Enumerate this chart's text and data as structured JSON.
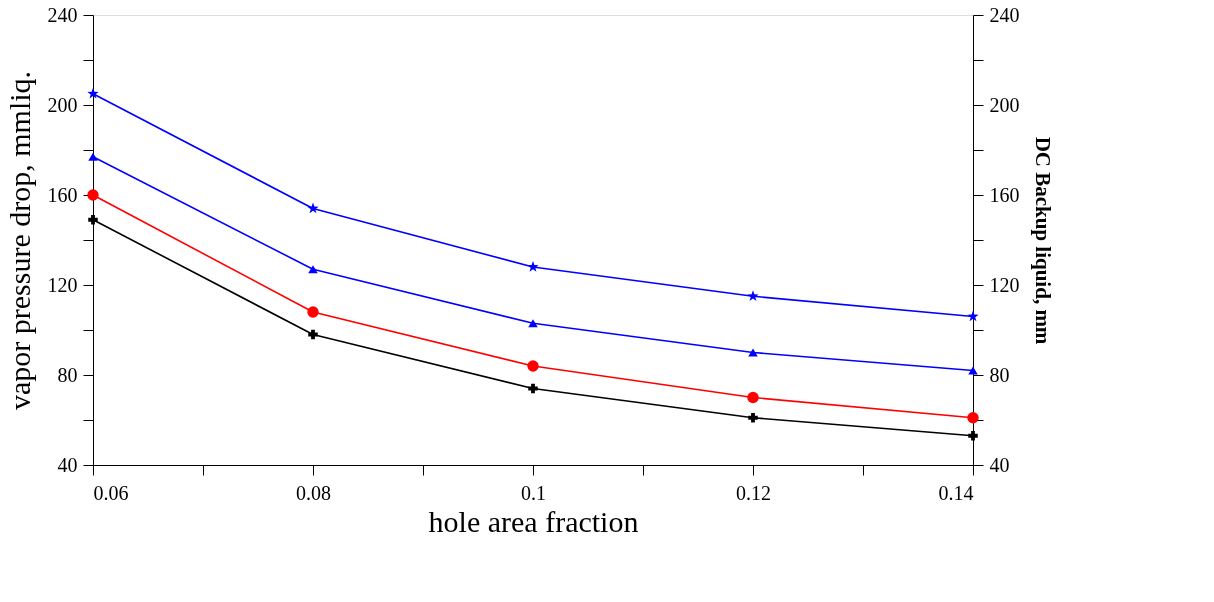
{
  "chart_data": {
    "type": "line",
    "xlabel": "hole area fraction",
    "ylabel": "vapor pressure drop, mmliq.",
    "y2label": "DC Backup liquid, mm",
    "x": [
      0.06,
      0.08,
      0.1,
      0.12,
      0.14
    ],
    "series": [
      {
        "color": "#0000ff",
        "marker": "star",
        "axis": "y2",
        "values": [
          205,
          154,
          128,
          115,
          106
        ]
      },
      {
        "color": "#0000ff",
        "marker": "triangle",
        "axis": "y2",
        "values": [
          177,
          127,
          103,
          90,
          82
        ]
      },
      {
        "color": "#ff0000",
        "marker": "circle",
        "values": [
          160,
          108,
          84,
          70,
          61
        ]
      },
      {
        "color": "#000000",
        "marker": "cross",
        "values": [
          149,
          98,
          74,
          61,
          53
        ]
      }
    ],
    "xlim": [
      0.06,
      0.14
    ],
    "xticks": [
      0.06,
      {
        "value": 0.07,
        "label": null
      },
      0.08,
      {
        "value": 0.09,
        "label": null
      },
      0.1,
      {
        "value": 0.11,
        "label": null
      },
      0.12,
      {
        "value": 0.13,
        "label": null
      },
      0.14
    ],
    "ylim": [
      40,
      240
    ],
    "yticks": [
      40,
      {
        "value": 60,
        "label": null
      },
      80,
      {
        "value": 100,
        "label": null
      },
      120,
      {
        "value": 140,
        "label": null
      },
      160,
      {
        "value": 180,
        "label": null
      },
      200,
      {
        "value": 220,
        "label": null
      },
      240
    ],
    "y2lim": [
      40,
      240
    ],
    "y2ticks": [
      40,
      {
        "value": 60,
        "label": null
      },
      80,
      {
        "value": 100,
        "label": null
      },
      120,
      {
        "value": 140,
        "label": null
      },
      160,
      {
        "value": 180,
        "label": null
      },
      200,
      {
        "value": 220,
        "label": null
      },
      240
    ],
    "grid": false,
    "line_style": "solid"
  }
}
